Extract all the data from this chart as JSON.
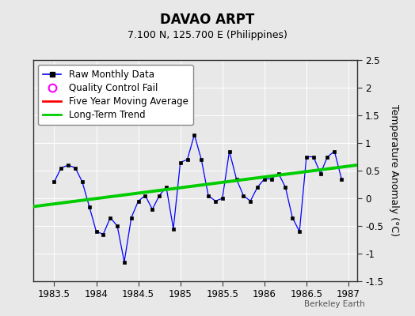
{
  "title": "DAVAO ARPT",
  "subtitle": "7.100 N, 125.700 E (Philippines)",
  "ylabel": "Temperature Anomaly (°C)",
  "watermark": "Berkeley Earth",
  "xlim": [
    1983.25,
    1987.1
  ],
  "ylim": [
    -1.5,
    2.5
  ],
  "xticks": [
    1983.5,
    1984.0,
    1984.5,
    1985.0,
    1985.5,
    1986.0,
    1986.5,
    1987.0
  ],
  "yticks": [
    -1.5,
    -1.0,
    -0.5,
    0.0,
    0.5,
    1.0,
    1.5,
    2.0,
    2.5
  ],
  "bg_color": "#e8e8e8",
  "plot_bg_color": "#e8e8e8",
  "grid_color": "#ffffff",
  "raw_x": [
    1983.5,
    1983.583,
    1983.667,
    1983.75,
    1983.833,
    1983.917,
    1984.0,
    1984.083,
    1984.167,
    1984.25,
    1984.333,
    1984.417,
    1984.5,
    1984.583,
    1984.667,
    1984.75,
    1984.833,
    1984.917,
    1985.0,
    1985.083,
    1985.167,
    1985.25,
    1985.333,
    1985.417,
    1985.5,
    1985.583,
    1985.667,
    1985.75,
    1985.833,
    1985.917,
    1986.0,
    1986.083,
    1986.167,
    1986.25,
    1986.333,
    1986.417,
    1986.5,
    1986.583,
    1986.667,
    1986.75,
    1986.833,
    1986.917
  ],
  "raw_y": [
    0.3,
    0.55,
    0.6,
    0.55,
    0.3,
    -0.15,
    -0.6,
    -0.65,
    -0.35,
    -0.5,
    -1.15,
    -0.35,
    -0.05,
    0.05,
    -0.2,
    0.05,
    0.2,
    -0.55,
    0.65,
    0.7,
    1.15,
    0.7,
    0.05,
    -0.05,
    0.0,
    0.85,
    0.35,
    0.05,
    -0.05,
    0.2,
    0.35,
    0.35,
    0.45,
    0.2,
    -0.35,
    -0.6,
    0.75,
    0.75,
    0.45,
    0.75,
    0.85,
    0.35
  ],
  "trend_x": [
    1983.25,
    1987.1
  ],
  "trend_y": [
    -0.15,
    0.6
  ],
  "line_color": "#0000ff",
  "marker_color": "#000000",
  "trend_color": "#00cc00",
  "mavg_color": "#ff0000",
  "legend_entries": [
    "Raw Monthly Data",
    "Quality Control Fail",
    "Five Year Moving Average",
    "Long-Term Trend"
  ],
  "legend_colors": [
    "#0000ff",
    "#ff00ff",
    "#ff0000",
    "#00cc00"
  ],
  "spine_color": "#333333"
}
